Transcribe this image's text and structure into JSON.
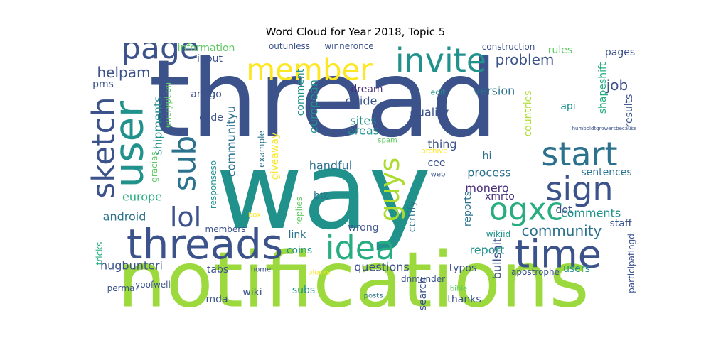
{
  "title": "Word Cloud for Year 2018, Topic 5",
  "palette": [
    "#3b528b",
    "#21918c",
    "#5ec962",
    "#fde725",
    "#440154",
    "#2c728e",
    "#27ad81",
    "#9bd93c",
    "#472d7b",
    "#addc30"
  ],
  "words": [
    {
      "text": "thread",
      "color": "#3b528b"
    },
    {
      "text": "way",
      "color": "#21918c"
    },
    {
      "text": "notifications",
      "color": "#9bd93c"
    },
    {
      "text": "user",
      "color": "#21918c"
    },
    {
      "text": "invite",
      "color": "#21918c"
    },
    {
      "text": "member",
      "color": "#fde725"
    },
    {
      "text": "page",
      "color": "#3b528b"
    },
    {
      "text": "start",
      "color": "#2c728e"
    },
    {
      "text": "sign",
      "color": "#3b528b"
    },
    {
      "text": "ogxc",
      "color": "#27ad81"
    },
    {
      "text": "time",
      "color": "#3b528b"
    },
    {
      "text": "threads",
      "color": "#3b528b"
    },
    {
      "text": "idea",
      "color": "#27ad81"
    },
    {
      "text": "sketch",
      "color": "#3b528b"
    },
    {
      "text": "sub",
      "color": "#2c728e"
    },
    {
      "text": "lol",
      "color": "#3b528b"
    },
    {
      "text": "guys",
      "color": "#addc30"
    },
    {
      "text": "community",
      "color": "#2c728e"
    },
    {
      "text": "problem",
      "color": "#3b528b"
    },
    {
      "text": "helpam",
      "color": "#3b528b"
    },
    {
      "text": "shipments",
      "color": "#21918c"
    },
    {
      "text": "communityu",
      "color": "#2c728e"
    },
    {
      "text": "version",
      "color": "#2c728e"
    },
    {
      "text": "job",
      "color": "#3b528b"
    },
    {
      "text": "shapeshift",
      "color": "#27ad81"
    },
    {
      "text": "quality",
      "color": "#3b528b"
    },
    {
      "text": "dream",
      "color": "#472d7b"
    },
    {
      "text": "guide",
      "color": "#3b528b"
    },
    {
      "text": "sites",
      "color": "#21918c"
    },
    {
      "text": "areas",
      "color": "#21918c"
    },
    {
      "text": "european",
      "color": "#21918c"
    },
    {
      "text": "comment",
      "color": "#21918c"
    },
    {
      "text": "handful",
      "color": "#2c728e"
    },
    {
      "text": "process",
      "color": "#2c728e"
    },
    {
      "text": "monero",
      "color": "#472d7b"
    },
    {
      "text": "xmrto",
      "color": "#472d7b"
    },
    {
      "text": "comments",
      "color": "#21918c"
    },
    {
      "text": "europe",
      "color": "#27ad81"
    },
    {
      "text": "android",
      "color": "#2c728e"
    },
    {
      "text": "report",
      "color": "#21918c"
    },
    {
      "text": "reports",
      "color": "#2c728e"
    },
    {
      "text": "questions",
      "color": "#3b528b"
    },
    {
      "text": "hugbunteri",
      "color": "#3b528b"
    },
    {
      "text": "users",
      "color": "#21918c"
    },
    {
      "text": "thing",
      "color": "#3b528b"
    },
    {
      "text": "countries",
      "color": "#addc30"
    },
    {
      "text": "results",
      "color": "#3b528b"
    },
    {
      "text": "rules",
      "color": "#5ec962"
    },
    {
      "text": "pages",
      "color": "#3b528b"
    },
    {
      "text": "information",
      "color": "#5ec962"
    },
    {
      "text": "input",
      "color": "#3b528b"
    },
    {
      "text": "amigo",
      "color": "#3b528b"
    },
    {
      "text": "code",
      "color": "#3b528b"
    },
    {
      "text": "encryption",
      "color": "#5ec962"
    },
    {
      "text": "gracias",
      "color": "#5ec962"
    },
    {
      "text": "pms",
      "color": "#3b528b"
    },
    {
      "text": "outunless",
      "color": "#3b528b"
    },
    {
      "text": "winneronce",
      "color": "#3b528b"
    },
    {
      "text": "construction",
      "color": "#3b528b"
    },
    {
      "text": "edit",
      "color": "#21918c"
    },
    {
      "text": "api",
      "color": "#21918c"
    },
    {
      "text": "humboldtgrowersbecause",
      "color": "#3b528b"
    },
    {
      "text": "example",
      "color": "#2c728e"
    },
    {
      "text": "giveaway",
      "color": "#fde725"
    },
    {
      "text": "spam",
      "color": "#5ec962"
    },
    {
      "text": "archive",
      "color": "#fde725"
    },
    {
      "text": "hi",
      "color": "#2c728e"
    },
    {
      "text": "cee",
      "color": "#3b528b"
    },
    {
      "text": "web",
      "color": "#3b528b"
    },
    {
      "text": "sentences",
      "color": "#2c728e"
    },
    {
      "text": "responseso",
      "color": "#21918c"
    },
    {
      "text": "btc",
      "color": "#2c728e"
    },
    {
      "text": "certify",
      "color": "#2c728e"
    },
    {
      "text": "dot",
      "color": "#3b528b"
    },
    {
      "text": "staff",
      "color": "#3b528b"
    },
    {
      "text": "box",
      "color": "#fde725"
    },
    {
      "text": "members",
      "color": "#3b528b"
    },
    {
      "text": "replies",
      "color": "#5ec962"
    },
    {
      "text": "wrong",
      "color": "#3b528b"
    },
    {
      "text": "link",
      "color": "#2c728e"
    },
    {
      "text": "coins",
      "color": "#21918c"
    },
    {
      "text": "wikiid",
      "color": "#21918c"
    },
    {
      "text": "tricks",
      "color": "#27ad81"
    },
    {
      "text": "perma",
      "color": "#3b528b"
    },
    {
      "text": "tabs",
      "color": "#3b528b"
    },
    {
      "text": "home",
      "color": "#3b528b"
    },
    {
      "text": "blocks",
      "color": "#fde725"
    },
    {
      "text": "typos",
      "color": "#3b528b"
    },
    {
      "text": "apostrophe",
      "color": "#3b528b"
    },
    {
      "text": "bullshit",
      "color": "#3b528b"
    },
    {
      "text": "participatingd",
      "color": "#3b528b"
    },
    {
      "text": "yoofwell",
      "color": "#3b528b"
    },
    {
      "text": "dnmunder",
      "color": "#3b528b"
    },
    {
      "text": "wiki",
      "color": "#3b528b"
    },
    {
      "text": "mda",
      "color": "#3b528b"
    },
    {
      "text": "subs",
      "color": "#21918c"
    },
    {
      "text": "posts",
      "color": "#2c728e"
    },
    {
      "text": "search",
      "color": "#3b528b"
    },
    {
      "text": "thanks",
      "color": "#3b528b"
    },
    {
      "text": "bible",
      "color": "#5ec962"
    }
  ]
}
